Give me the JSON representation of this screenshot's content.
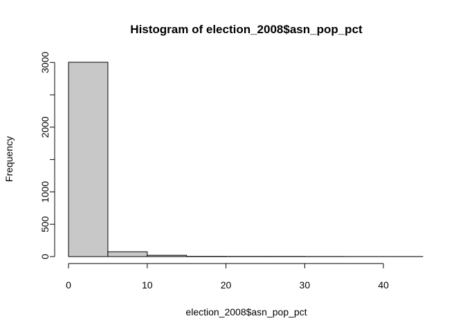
{
  "chart_data": {
    "type": "bar",
    "title": "Histogram of election_2008$asn_pop_pct",
    "xlabel": "election_2008$asn_pop_pct",
    "ylabel": "Frequency",
    "bins": [
      {
        "from": 0,
        "to": 5,
        "count": 3003
      },
      {
        "from": 5,
        "to": 10,
        "count": 75
      },
      {
        "from": 10,
        "to": 15,
        "count": 20
      },
      {
        "from": 15,
        "to": 20,
        "count": 4
      },
      {
        "from": 20,
        "to": 25,
        "count": 3
      },
      {
        "from": 25,
        "to": 30,
        "count": 3
      },
      {
        "from": 30,
        "to": 35,
        "count": 2
      },
      {
        "from": 35,
        "to": 40,
        "count": 1
      },
      {
        "from": 40,
        "to": 45,
        "count": 1
      }
    ],
    "xlim": [
      0,
      45
    ],
    "ylim": [
      0,
      3003
    ],
    "x_ticks": [
      0,
      10,
      20,
      30,
      40
    ],
    "y_ticks": [
      0,
      500,
      1000,
      2000,
      3000
    ],
    "y_minor_ticks": [
      1500,
      2500
    ],
    "bar_fill": "#c8c8c8",
    "bar_stroke": "#000000",
    "grid": false,
    "legend": "none"
  }
}
